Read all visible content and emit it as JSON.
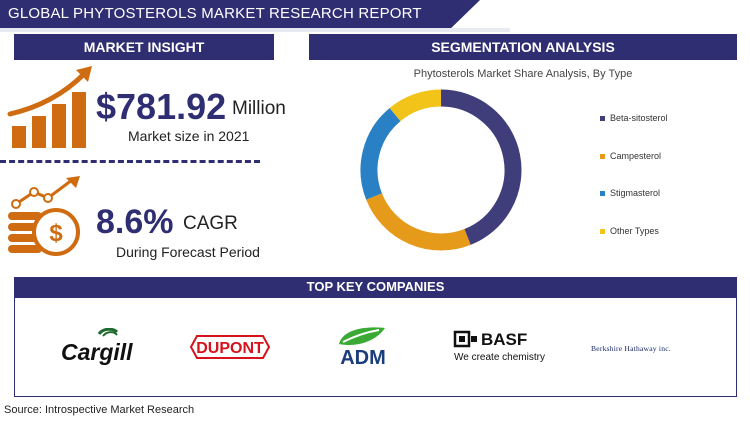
{
  "report": {
    "title": "GLOBAL PHYTOSTEROLS MARKET RESEARCH REPORT"
  },
  "market_insight": {
    "header": "MARKET INSIGHT",
    "size_value": "$781.92",
    "size_unit": "Million",
    "size_label": "Market size in 2021",
    "cagr_value": "8.6%",
    "cagr_unit": "CAGR",
    "cagr_label": "During Forecast Period"
  },
  "segmentation": {
    "header": "SEGMENTATION ANALYSIS"
  },
  "chart_data": {
    "type": "pie",
    "title": "Phytosterols Market Share Analysis, By Type",
    "categories": [
      "Beta-sitosterol",
      "Campesterol",
      "Stigmasterol",
      "Other Types"
    ],
    "values": [
      44,
      25,
      20,
      11
    ],
    "colors": [
      "#3f3d7a",
      "#e69a1a",
      "#2a80c4",
      "#f2c318"
    ],
    "legend_position": "right",
    "donut": true
  },
  "companies": {
    "header": "TOP KEY COMPANIES",
    "logos": [
      {
        "name": "Cargill",
        "icon": "cargill-logo"
      },
      {
        "name": "DUPONT",
        "icon": "dupont-logo"
      },
      {
        "name": "ADM",
        "icon": "adm-leaf-logo"
      },
      {
        "name": "BASF",
        "tagline": "We create chemistry",
        "icon": "basf-logo"
      },
      {
        "name": "Berkshire Hathaway inc.",
        "icon": "berkshire-logo"
      }
    ]
  },
  "source": "Source: Introspective Market Research",
  "colors": {
    "navy": "#2f2e72",
    "orange": "#cf6b10"
  }
}
